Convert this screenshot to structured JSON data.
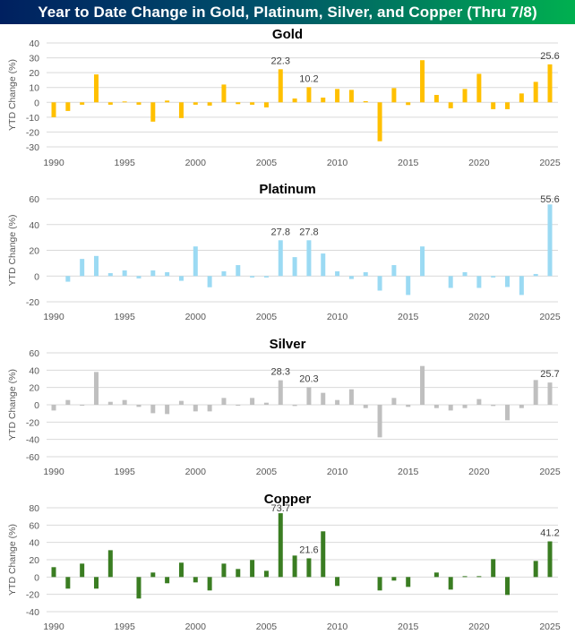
{
  "title": "Year to Date Change in Gold, Platinum, Silver, and Copper (Thru 7/8)",
  "chart_data": [
    {
      "type": "bar",
      "title": "Gold",
      "xlabel": "",
      "ylabel": "YTD Change (%)",
      "ylim": [
        -30,
        40
      ],
      "yticks": [
        40,
        30,
        20,
        10,
        0,
        -10,
        -20,
        -30
      ],
      "xticks": [
        1990,
        1995,
        2000,
        2005,
        2010,
        2015,
        2020,
        2025
      ],
      "grid": true,
      "color": "#FFC000",
      "x": [
        1990,
        1991,
        1992,
        1993,
        1994,
        1995,
        1996,
        1997,
        1998,
        1999,
        2000,
        2001,
        2002,
        2003,
        2004,
        2005,
        2006,
        2007,
        2008,
        2009,
        2010,
        2011,
        2012,
        2013,
        2014,
        2015,
        2016,
        2017,
        2018,
        2019,
        2020,
        2021,
        2022,
        2023,
        2024,
        2025
      ],
      "values": [
        -10.0,
        -5.8,
        -1.6,
        18.8,
        -1.6,
        0.6,
        -1.6,
        -13.0,
        1.2,
        -10.6,
        -1.6,
        -2.2,
        12.0,
        -1.2,
        -1.6,
        -3.4,
        22.3,
        2.6,
        10.2,
        3.2,
        9.0,
        8.4,
        0.8,
        -26.2,
        9.6,
        -1.8,
        28.4,
        5.0,
        -4.0,
        9.0,
        19.2,
        -4.6,
        -4.6,
        6.0,
        13.8,
        25.6
      ],
      "labels": [
        {
          "x": 2006,
          "text": "22.3"
        },
        {
          "x": 2008,
          "text": "10.2"
        },
        {
          "x": 2025,
          "text": "25.6"
        }
      ]
    },
    {
      "type": "bar",
      "title": "Platinum",
      "xlabel": "",
      "ylabel": "YTD Change (%)",
      "ylim": [
        -20,
        60
      ],
      "yticks": [
        60,
        40,
        20,
        0,
        -20
      ],
      "xticks": [
        1990,
        1995,
        2000,
        2005,
        2010,
        2015,
        2020,
        2025
      ],
      "grid": true,
      "color": "#9BDAF3",
      "x": [
        1990,
        1991,
        1992,
        1993,
        1994,
        1995,
        1996,
        1997,
        1998,
        1999,
        2000,
        2001,
        2002,
        2003,
        2004,
        2005,
        2006,
        2007,
        2008,
        2009,
        2010,
        2011,
        2012,
        2013,
        2014,
        2015,
        2016,
        2017,
        2018,
        2019,
        2020,
        2021,
        2022,
        2023,
        2024,
        2025
      ],
      "values": [
        0,
        -4.4,
        13.3,
        15.6,
        2.3,
        4.4,
        -1.8,
        4.4,
        3.0,
        -3.7,
        23.0,
        -8.7,
        3.7,
        8.5,
        -1.1,
        -1.1,
        27.8,
        14.7,
        27.8,
        17.5,
        3.7,
        -2.3,
        3.0,
        -11.3,
        8.5,
        -14.7,
        23.0,
        0,
        -9.2,
        3.0,
        -9.2,
        -1.1,
        -8.5,
        -14.7,
        1.6,
        55.6
      ],
      "labels": [
        {
          "x": 2006,
          "text": "27.8"
        },
        {
          "x": 2008,
          "text": "27.8"
        },
        {
          "x": 2025,
          "text": "55.6"
        }
      ]
    },
    {
      "type": "bar",
      "title": "Silver",
      "xlabel": "",
      "ylabel": "YTD Change (%)",
      "ylim": [
        -60,
        60
      ],
      "yticks": [
        60,
        40,
        20,
        0,
        -20,
        -40,
        -60
      ],
      "xticks": [
        1990,
        1995,
        2000,
        2005,
        2010,
        2015,
        2020,
        2025
      ],
      "grid": true,
      "color": "#BFBFBF",
      "x": [
        1990,
        1991,
        1992,
        1993,
        1994,
        1995,
        1996,
        1997,
        1998,
        1999,
        2000,
        2001,
        2002,
        2003,
        2004,
        2005,
        2006,
        2007,
        2008,
        2009,
        2010,
        2011,
        2012,
        2013,
        2014,
        2015,
        2016,
        2017,
        2018,
        2019,
        2020,
        2021,
        2022,
        2023,
        2024,
        2025
      ],
      "values": [
        -6.6,
        5.5,
        -1.0,
        37.9,
        3.4,
        5.5,
        -2.4,
        -9.7,
        -10.7,
        4.5,
        -7.6,
        -7.6,
        7.9,
        -1.0,
        7.9,
        2.4,
        28.3,
        -1.4,
        20.3,
        13.8,
        5.5,
        17.9,
        -3.8,
        -37.6,
        7.9,
        -2.4,
        44.8,
        -3.8,
        -6.6,
        -3.8,
        6.6,
        -1.4,
        -17.9,
        -3.8,
        28.6,
        25.7
      ],
      "labels": [
        {
          "x": 2006,
          "text": "28.3"
        },
        {
          "x": 2008,
          "text": "20.3"
        },
        {
          "x": 2025,
          "text": "25.7"
        }
      ]
    },
    {
      "type": "bar",
      "title": "Copper",
      "xlabel": "",
      "ylabel": "YTD Change (%)",
      "ylim": [
        -40,
        80
      ],
      "yticks": [
        80,
        60,
        40,
        20,
        0,
        -20,
        -40
      ],
      "xticks": [
        1990,
        1995,
        2000,
        2005,
        2010,
        2015,
        2020,
        2025
      ],
      "grid": true,
      "color": "#3A7D22",
      "x": [
        1990,
        1991,
        1992,
        1993,
        1994,
        1995,
        1996,
        1997,
        1998,
        1999,
        2000,
        2001,
        2002,
        2003,
        2004,
        2005,
        2006,
        2007,
        2008,
        2009,
        2010,
        2011,
        2012,
        2013,
        2014,
        2015,
        2016,
        2017,
        2018,
        2019,
        2020,
        2021,
        2022,
        2023,
        2024,
        2025
      ],
      "values": [
        11.4,
        -13.4,
        15.5,
        -13.4,
        31.0,
        0,
        -24.8,
        5.2,
        -7.2,
        16.6,
        -6.2,
        -15.5,
        15.5,
        9.3,
        19.7,
        7.2,
        73.7,
        24.8,
        21.6,
        52.8,
        -10.3,
        0,
        0,
        -15.5,
        -4.1,
        -11.4,
        0,
        5.2,
        -14.5,
        1.0,
        1.0,
        20.7,
        -20.7,
        0,
        18.6,
        41.2
      ],
      "labels": [
        {
          "x": 2006,
          "text": "73.7"
        },
        {
          "x": 2008,
          "text": "21.6"
        },
        {
          "x": 2025,
          "text": "41.2"
        }
      ]
    }
  ]
}
